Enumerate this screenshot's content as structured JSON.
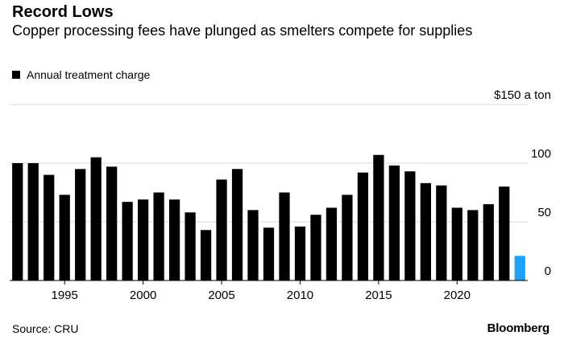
{
  "chart_data": {
    "type": "bar",
    "title": "Record Lows",
    "subtitle": "Copper processing fees have plunged as smelters compete for supplies",
    "series": [
      {
        "name": "Annual treatment charge",
        "color": "#000000",
        "x": [
          1992,
          1993,
          1994,
          1995,
          1996,
          1997,
          1998,
          1999,
          2000,
          2001,
          2002,
          2003,
          2004,
          2005,
          2006,
          2007,
          2008,
          2009,
          2010,
          2011,
          2012,
          2013,
          2014,
          2015,
          2016,
          2017,
          2018,
          2019,
          2020,
          2021,
          2022,
          2023
        ],
        "values": [
          100,
          100,
          90,
          73,
          95,
          105,
          97,
          67,
          69,
          75,
          69,
          58,
          43,
          86,
          95,
          60,
          45,
          75,
          46,
          56,
          62,
          73,
          92,
          107,
          98,
          93,
          83,
          81,
          62,
          60,
          65,
          80
        ]
      },
      {
        "name": "",
        "color": "#1aa3ff",
        "x": [
          2024
        ],
        "values": [
          21
        ]
      }
    ],
    "x_ticks": [
      1995,
      2000,
      2005,
      2010,
      2015,
      2020
    ],
    "y_ticks": [
      {
        "value": 150,
        "label": "$150 a ton"
      },
      {
        "value": 100,
        "label": "100"
      },
      {
        "value": 50,
        "label": "50"
      },
      {
        "value": 0,
        "label": "0"
      }
    ],
    "xlim": [
      1991.5,
      2024.5
    ],
    "ylim": [
      0,
      150
    ],
    "grid": true,
    "legend": "top-left"
  },
  "footer": {
    "source": "Source: CRU",
    "brand": "Bloomberg"
  }
}
